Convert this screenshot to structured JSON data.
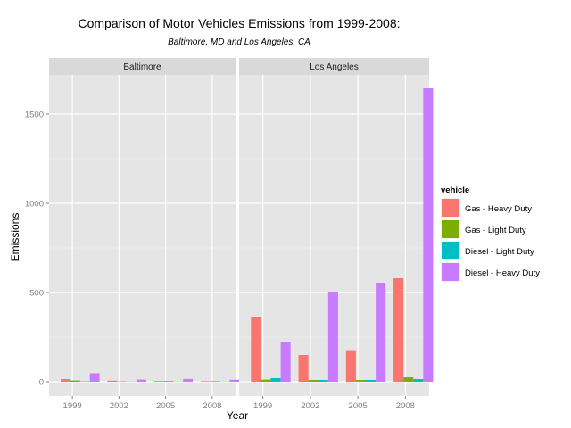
{
  "chart_data": {
    "type": "bar",
    "title": "Comparison of Motor Vehicles Emissions from 1999-2008:",
    "subtitle": "Baltimore, MD and Los Angeles, CA",
    "xlabel": "Year",
    "ylabel": "Emissions",
    "x": [
      1999,
      2002,
      2005,
      2008
    ],
    "x_tick_labels": [
      "1999",
      "2002",
      "2005",
      "2008"
    ],
    "ylim": [
      -80,
      1720
    ],
    "y_ticks": [
      0,
      500,
      1000,
      1500
    ],
    "y_tick_labels": [
      "0",
      "500",
      "1000",
      "1500"
    ],
    "legend": {
      "title": "vehicle",
      "position": "right"
    },
    "grid": true,
    "series_colors": [
      "#F8766D",
      "#7CAE00",
      "#00BFC4",
      "#C77CFF"
    ],
    "series": [
      {
        "name": "Gas - Heavy Duty"
      },
      {
        "name": "Gas - Light Duty"
      },
      {
        "name": "Diesel - Light Duty"
      },
      {
        "name": "Diesel - Heavy Duty"
      }
    ],
    "panels": [
      {
        "label": "Baltimore",
        "values": [
          [
            15,
            7,
            2,
            48
          ],
          [
            6,
            2,
            1,
            12
          ],
          [
            4,
            4,
            1,
            16
          ],
          [
            3,
            3,
            1,
            11
          ]
        ]
      },
      {
        "label": "Los Angeles",
        "values": [
          [
            360,
            12,
            20,
            225
          ],
          [
            150,
            10,
            10,
            500
          ],
          [
            172,
            10,
            10,
            555
          ],
          [
            580,
            25,
            15,
            1645
          ]
        ]
      }
    ]
  }
}
